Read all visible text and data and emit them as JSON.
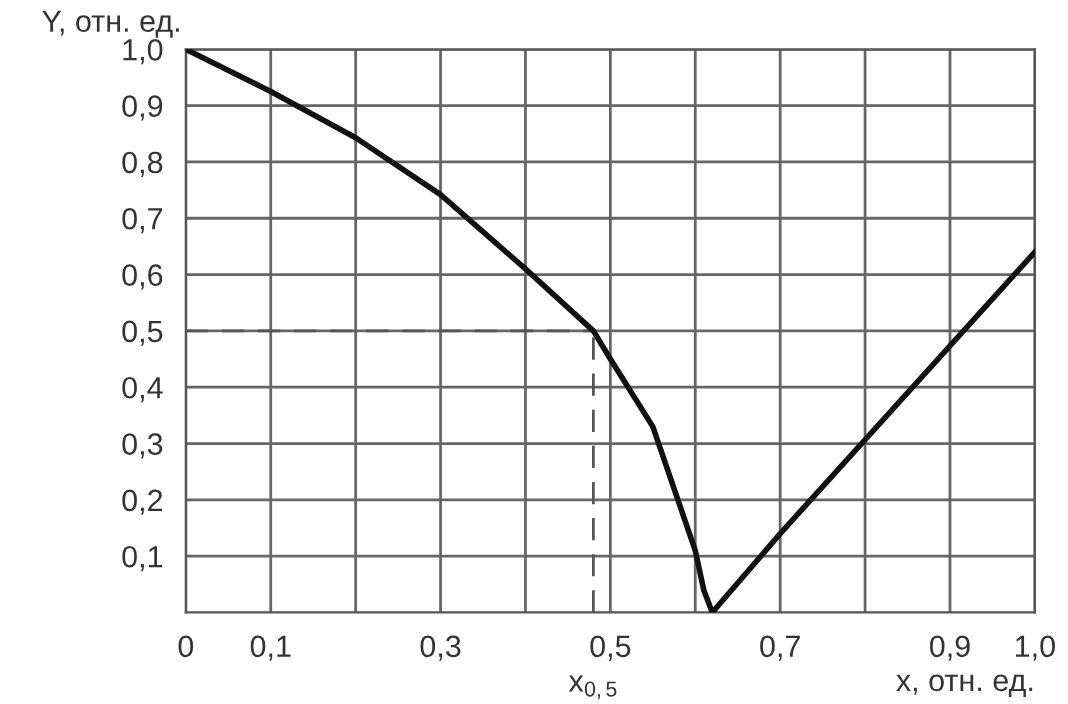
{
  "chart_data": {
    "type": "line",
    "xlabel": "x, отн. ед.",
    "ylabel": "Y, отн. ед.",
    "x": [
      0,
      0.1,
      0.2,
      0.3,
      0.4,
      0.48,
      0.5,
      0.55,
      0.6,
      0.61,
      0.62,
      0.7,
      1.0
    ],
    "series": [
      {
        "color": "#111111",
        "values": [
          1.0,
          0.925,
          0.843,
          0.742,
          0.61,
          0.5,
          0.45,
          0.33,
          0.11,
          0.04,
          0,
          0.14,
          0.64
        ]
      }
    ],
    "xlim": [
      0,
      1.0
    ],
    "ylim": [
      0,
      1.0
    ],
    "xticks": [
      {
        "value": 0,
        "label": "0"
      },
      {
        "value": 0.1,
        "label": "0,1"
      },
      {
        "value": 0.2,
        "label": null
      },
      {
        "value": 0.3,
        "label": "0,3"
      },
      {
        "value": 0.4,
        "label": null
      },
      {
        "value": 0.5,
        "label": "0,5"
      },
      {
        "value": 0.6,
        "label": null
      },
      {
        "value": 0.7,
        "label": "0,7"
      },
      {
        "value": 0.8,
        "label": null
      },
      {
        "value": 0.9,
        "label": "0,9"
      },
      {
        "value": 1.0,
        "label": "1,0"
      }
    ],
    "yticks": [
      {
        "value": 0.1,
        "label": "0,1"
      },
      {
        "value": 0.2,
        "label": "0,2"
      },
      {
        "value": 0.3,
        "label": "0,3"
      },
      {
        "value": 0.4,
        "label": "0,4"
      },
      {
        "value": 0.5,
        "label": "0,5"
      },
      {
        "value": 0.6,
        "label": "0,6"
      },
      {
        "value": 0.7,
        "label": "0,7"
      },
      {
        "value": 0.8,
        "label": "0,8"
      },
      {
        "value": 0.9,
        "label": "0,9"
      },
      {
        "value": 1.0,
        "label": "1,0"
      }
    ],
    "ref_lines": [
      {
        "axis": "y",
        "value": 0.5,
        "line_style": "dashed",
        "color": "#555555"
      },
      {
        "axis": "x",
        "value": 0.48,
        "label": "x$_{0,5}$",
        "line_style": "dashed",
        "color": "#555555"
      }
    ],
    "grid": true,
    "marker": "none",
    "line_style": "solid"
  }
}
